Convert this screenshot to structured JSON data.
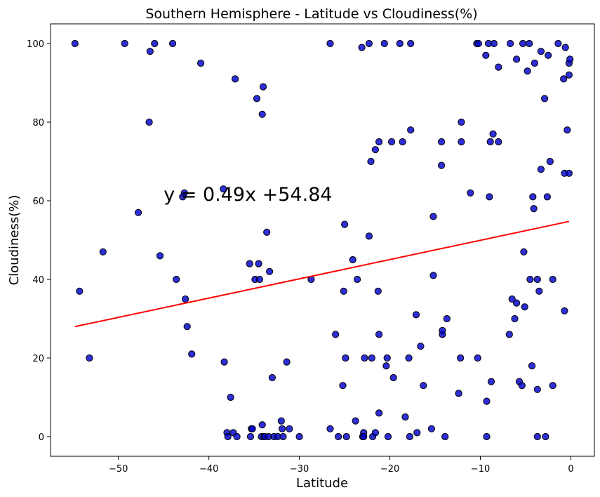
{
  "chart_data": {
    "type": "scatter",
    "title": "Southern Hemisphere - Latitude vs Cloudiness(%)",
    "xlabel": "Latitude",
    "ylabel": "Cloudiness(%)",
    "xlim": [
      -57.5,
      2.6
    ],
    "ylim": [
      -5,
      105
    ],
    "x_ticks": [
      -50,
      -40,
      -30,
      -20,
      -10,
      0
    ],
    "y_ticks": [
      0,
      20,
      40,
      60,
      80,
      100
    ],
    "x_tick_labels": [
      "−50",
      "−40",
      "−30",
      "−20",
      "−10",
      "0"
    ],
    "y_tick_labels": [
      "0",
      "20",
      "40",
      "60",
      "80",
      "100"
    ],
    "grid": false,
    "marker_color": "#0000cc",
    "marker_edge_color": "#000000",
    "regression": {
      "equation": "y = 0.49x +54.84",
      "slope": 0.49,
      "intercept": 54.84,
      "x_range": [
        -54.8,
        -0.2
      ],
      "color": "#ff0000",
      "annotation_at": [
        -45,
        60
      ]
    },
    "points": [
      [
        -54.8,
        100
      ],
      [
        -54.3,
        37
      ],
      [
        -53.2,
        20
      ],
      [
        -51.7,
        47
      ],
      [
        -49.3,
        100
      ],
      [
        -47.8,
        57
      ],
      [
        -46.5,
        98
      ],
      [
        -46.6,
        80
      ],
      [
        -46.0,
        100
      ],
      [
        -45.4,
        46
      ],
      [
        -44.0,
        100
      ],
      [
        -43.6,
        40
      ],
      [
        -42.9,
        61
      ],
      [
        -42.7,
        62
      ],
      [
        -42.6,
        35
      ],
      [
        -42.4,
        28
      ],
      [
        -41.9,
        21
      ],
      [
        -40.9,
        95
      ],
      [
        -38.4,
        63
      ],
      [
        -38.3,
        19
      ],
      [
        -38.0,
        1
      ],
      [
        -37.9,
        0
      ],
      [
        -37.6,
        10
      ],
      [
        -37.3,
        1
      ],
      [
        -37.1,
        91
      ],
      [
        -36.9,
        0
      ],
      [
        -35.5,
        44
      ],
      [
        -35.4,
        0
      ],
      [
        -35.3,
        2
      ],
      [
        -35.2,
        2
      ],
      [
        -34.9,
        40
      ],
      [
        -34.7,
        86
      ],
      [
        -34.5,
        44
      ],
      [
        -34.4,
        40
      ],
      [
        -34.2,
        0
      ],
      [
        -34.1,
        3
      ],
      [
        -34.1,
        82
      ],
      [
        -34.0,
        89
      ],
      [
        -33.9,
        0
      ],
      [
        -33.8,
        0
      ],
      [
        -33.6,
        52
      ],
      [
        -33.4,
        0
      ],
      [
        -33.3,
        42
      ],
      [
        -33.0,
        15
      ],
      [
        -32.8,
        0
      ],
      [
        -32.4,
        0
      ],
      [
        -32.0,
        4
      ],
      [
        -31.9,
        2
      ],
      [
        -31.8,
        0
      ],
      [
        -31.4,
        19
      ],
      [
        -31.1,
        2
      ],
      [
        -30.0,
        0
      ],
      [
        -28.7,
        40
      ],
      [
        -26.6,
        100
      ],
      [
        -26.6,
        2
      ],
      [
        -26.0,
        26
      ],
      [
        -25.7,
        0
      ],
      [
        -25.2,
        13
      ],
      [
        -25.1,
        37
      ],
      [
        -25.0,
        54
      ],
      [
        -24.9,
        20
      ],
      [
        -24.8,
        0
      ],
      [
        -24.1,
        45
      ],
      [
        -23.8,
        4
      ],
      [
        -23.6,
        40
      ],
      [
        -23.1,
        99
      ],
      [
        -23.0,
        0
      ],
      [
        -22.9,
        1
      ],
      [
        -22.9,
        0
      ],
      [
        -22.8,
        20
      ],
      [
        -22.3,
        100
      ],
      [
        -22.3,
        51
      ],
      [
        -22.1,
        70
      ],
      [
        -22.0,
        20
      ],
      [
        -21.9,
        0
      ],
      [
        -21.6,
        73
      ],
      [
        -21.6,
        1
      ],
      [
        -21.3,
        37
      ],
      [
        -21.2,
        75
      ],
      [
        -21.2,
        6
      ],
      [
        -21.2,
        26
      ],
      [
        -20.6,
        100
      ],
      [
        -20.4,
        18
      ],
      [
        -20.3,
        20
      ],
      [
        -20.2,
        0
      ],
      [
        -19.8,
        75
      ],
      [
        -19.6,
        15
      ],
      [
        -18.9,
        100
      ],
      [
        -18.6,
        75
      ],
      [
        -18.3,
        5
      ],
      [
        -17.9,
        20
      ],
      [
        -17.8,
        0
      ],
      [
        -17.7,
        78
      ],
      [
        -17.7,
        100
      ],
      [
        -17.1,
        31
      ],
      [
        -17.0,
        1
      ],
      [
        -16.6,
        23
      ],
      [
        -16.3,
        13
      ],
      [
        -15.4,
        2
      ],
      [
        -15.2,
        56
      ],
      [
        -15.2,
        41
      ],
      [
        -14.3,
        75
      ],
      [
        -14.2,
        26
      ],
      [
        -14.2,
        27
      ],
      [
        -14.3,
        69
      ],
      [
        -13.9,
        0
      ],
      [
        -13.7,
        30
      ],
      [
        -12.4,
        11
      ],
      [
        -12.2,
        20
      ],
      [
        -12.1,
        75
      ],
      [
        -12.1,
        80
      ],
      [
        -11.1,
        62
      ],
      [
        -10.4,
        100
      ],
      [
        -10.3,
        20
      ],
      [
        -10.2,
        100
      ],
      [
        -9.4,
        97
      ],
      [
        -9.3,
        9
      ],
      [
        -9.3,
        0
      ],
      [
        -9.1,
        100
      ],
      [
        -9.0,
        61
      ],
      [
        -8.9,
        75
      ],
      [
        -8.8,
        14
      ],
      [
        -8.6,
        77
      ],
      [
        -8.5,
        100
      ],
      [
        -8.0,
        94
      ],
      [
        -8.0,
        75
      ],
      [
        -6.8,
        26
      ],
      [
        -6.7,
        100
      ],
      [
        -6.5,
        35
      ],
      [
        -6.2,
        30
      ],
      [
        -6.0,
        96
      ],
      [
        -6.0,
        34
      ],
      [
        -5.7,
        14
      ],
      [
        -5.4,
        13
      ],
      [
        -5.3,
        100
      ],
      [
        -5.2,
        47
      ],
      [
        -5.1,
        33
      ],
      [
        -4.8,
        93
      ],
      [
        -4.6,
        100
      ],
      [
        -4.5,
        40
      ],
      [
        -4.3,
        18
      ],
      [
        -4.2,
        61
      ],
      [
        -4.1,
        58
      ],
      [
        -4.0,
        95
      ],
      [
        -3.7,
        40
      ],
      [
        -3.7,
        0
      ],
      [
        -3.7,
        12
      ],
      [
        -3.5,
        37
      ],
      [
        -3.3,
        98
      ],
      [
        -3.3,
        68
      ],
      [
        -2.9,
        86
      ],
      [
        -2.8,
        0
      ],
      [
        -2.6,
        61
      ],
      [
        -2.5,
        97
      ],
      [
        -2.3,
        70
      ],
      [
        -2.0,
        13
      ],
      [
        -2.0,
        40
      ],
      [
        -1.4,
        100
      ],
      [
        -0.8,
        91
      ],
      [
        -0.7,
        67
      ],
      [
        -0.7,
        32
      ],
      [
        -0.6,
        99
      ],
      [
        -0.4,
        78
      ],
      [
        -0.2,
        67
      ],
      [
        -0.2,
        95
      ],
      [
        -0.2,
        92
      ],
      [
        -0.1,
        96
      ]
    ]
  }
}
